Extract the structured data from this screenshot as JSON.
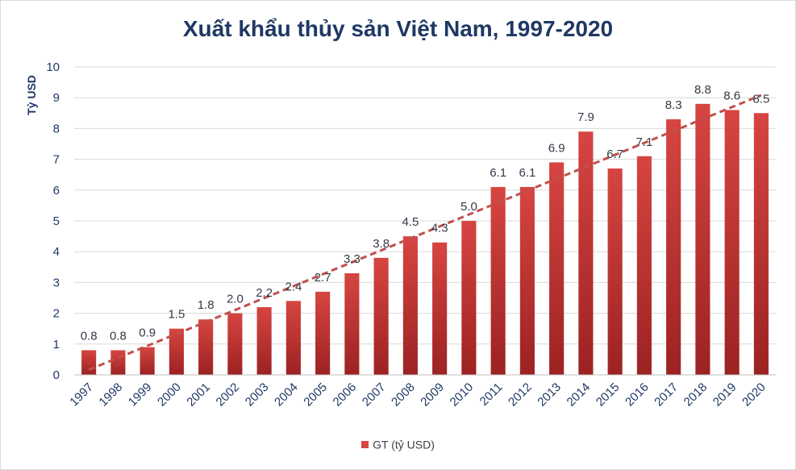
{
  "colors": {
    "bar_top": "#d64541",
    "bar_bottom": "#9c2222",
    "trend": "#c0504d",
    "title": "#1f3864",
    "axis_text": "#1f3864",
    "grid": "#d9d9d9"
  },
  "chart_data": {
    "type": "bar",
    "title": "Xuất khẩu thủy sản Việt Nam, 1997-2020",
    "xlabel": "",
    "ylabel": "Tỷ USD",
    "ylim": [
      0,
      10
    ],
    "yticks": [
      "0",
      "1",
      "2",
      "3",
      "4",
      "5",
      "6",
      "7",
      "8",
      "9",
      "10"
    ],
    "grid": true,
    "legend_position": "bottom",
    "categories": [
      "1997",
      "1998",
      "1999",
      "2000",
      "2001",
      "2002",
      "2003",
      "2004",
      "2005",
      "2006",
      "2007",
      "2008",
      "2009",
      "2010",
      "2011",
      "2012",
      "2013",
      "2014",
      "2015",
      "2016",
      "2017",
      "2018",
      "2019",
      "2020"
    ],
    "series": [
      {
        "name": "GT (tỷ USD)",
        "values": [
          0.8,
          0.8,
          0.9,
          1.5,
          1.8,
          2.0,
          2.2,
          2.4,
          2.7,
          3.3,
          3.8,
          4.5,
          4.3,
          5.0,
          6.1,
          6.1,
          6.9,
          7.9,
          6.7,
          7.1,
          8.3,
          8.8,
          8.6,
          8.5
        ],
        "labels": [
          "0.8",
          "0.8",
          "0.9",
          "1.5",
          "1.8",
          "2.0",
          "2.2",
          "2.4",
          "2.7",
          "3.3",
          "3.8",
          "4.5",
          "4.3",
          "5.0",
          "6.1",
          "6.1",
          "6.9",
          "7.9",
          "6.7",
          "7.1",
          "8.3",
          "8.8",
          "8.6",
          "8.5"
        ]
      }
    ],
    "trendline": {
      "type": "linear",
      "style": "dashed"
    }
  }
}
